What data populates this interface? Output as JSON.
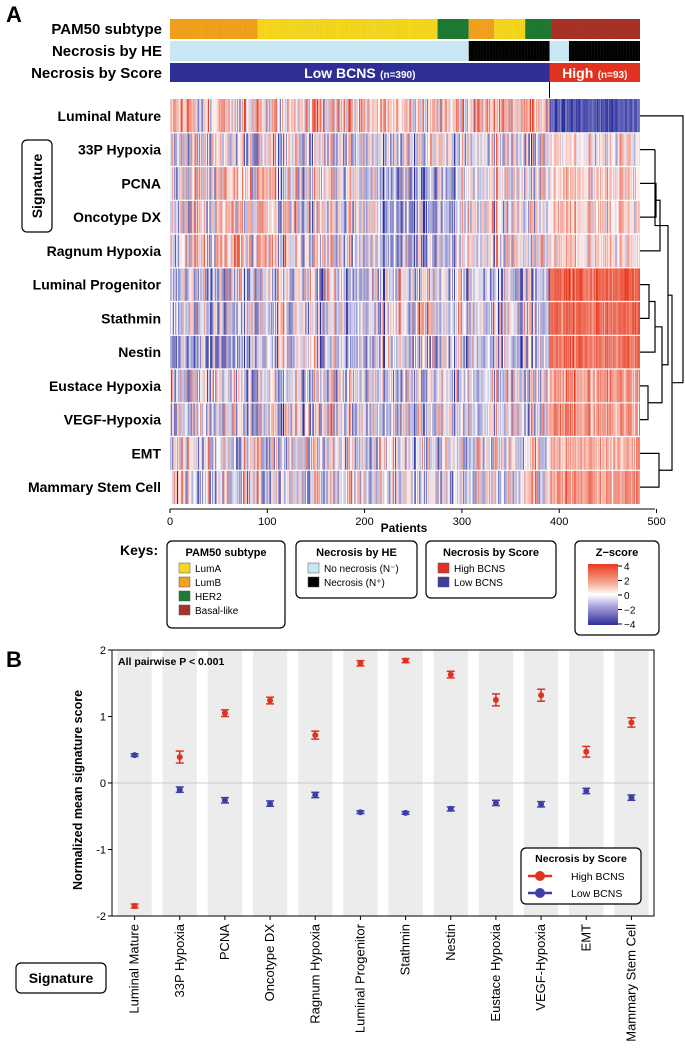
{
  "panel_labels": [
    "A",
    "B"
  ],
  "heatmap_panel": {
    "annotation_tracks": [
      {
        "label": "PAM50 subtype"
      },
      {
        "label": "Necrosis by HE"
      },
      {
        "label": "Necrosis by Score"
      }
    ],
    "score_bar": {
      "low_label": "Low BCNS",
      "low_n": "(n=390)",
      "high_label": "High",
      "high_n": "(n=93)"
    },
    "row_axis_box": "Signature",
    "rows": [
      "Luminal Mature",
      "33P Hypoxia",
      "PCNA",
      "Oncotype DX",
      "Ragnum Hypoxia",
      "Luminal Progenitor",
      "Stathmin",
      "Nestin",
      "Eustace Hypoxia",
      "VEGF-Hypoxia",
      "EMT",
      "Mammary Stem Cell"
    ],
    "x_axis": {
      "title": "Patients",
      "ticks": [
        0,
        100,
        200,
        300,
        400,
        500
      ],
      "lim": [
        0,
        483
      ]
    },
    "patients": {
      "total": 483,
      "low_bcns": 390,
      "high_bcns": 93
    },
    "keys": {
      "title": "Keys:",
      "groups": [
        {
          "title": "PAM50 subtype",
          "items": [
            {
              "label": "LumA",
              "color": "#f6d81f"
            },
            {
              "label": "LumB",
              "color": "#f4a21b"
            },
            {
              "label": "HER2",
              "color": "#1f7a33"
            },
            {
              "label": "Basal-like",
              "color": "#a83228"
            }
          ]
        },
        {
          "title": "Necrosis by HE",
          "items": [
            {
              "label": "No necrosis (N⁻)",
              "color": "#c9e6f3"
            },
            {
              "label": "Necrosis (N⁺)",
              "color": "#000000"
            }
          ]
        },
        {
          "title": "Necrosis by Score",
          "items": [
            {
              "label": "High BCNS",
              "color": "#e0321f"
            },
            {
              "label": "Low BCNS",
              "color": "#3e3e9e"
            }
          ]
        }
      ],
      "zscore": {
        "title": "Z−score",
        "ticks": [
          "4",
          "2",
          "0",
          "−2",
          "−4"
        ]
      }
    },
    "colors": {
      "low": "#2e2f96",
      "high": "#e8391e",
      "mid": "#ffffff"
    }
  },
  "chart_data": {
    "type": "scatter",
    "subtype": "mean with error bars",
    "categories": [
      "Luminal Mature",
      "33P Hypoxia",
      "PCNA",
      "Oncotype DX",
      "Ragnum Hypoxia",
      "Luminal Progenitor",
      "Stathmin",
      "Nestin",
      "Eustace Hypoxia",
      "VEGF-Hypoxia",
      "EMT",
      "Mammary Stem Cell"
    ],
    "series": [
      {
        "name": "High BCNS",
        "color": "#e0321f",
        "values": [
          -1.85,
          0.39,
          1.05,
          1.24,
          0.72,
          1.8,
          1.84,
          1.63,
          1.25,
          1.32,
          0.47,
          0.91
        ],
        "errors": [
          0.03,
          0.09,
          0.05,
          0.05,
          0.06,
          0.04,
          0.03,
          0.05,
          0.09,
          0.09,
          0.08,
          0.07
        ]
      },
      {
        "name": "Low BCNS",
        "color": "#3e3ea8",
        "values": [
          0.42,
          -0.1,
          -0.26,
          -0.31,
          -0.18,
          -0.44,
          -0.45,
          -0.39,
          -0.3,
          -0.32,
          -0.12,
          -0.22
        ],
        "errors": [
          0.02,
          0.04,
          0.04,
          0.04,
          0.04,
          0.02,
          0.02,
          0.03,
          0.04,
          0.04,
          0.04,
          0.04
        ]
      }
    ],
    "title": "",
    "annotation": "All pairwise P < 0.001",
    "xlabel": "Signature",
    "ylabel": "Normalized mean signature score",
    "ylim": [
      -2,
      2
    ],
    "yticks": [
      -2,
      -1,
      0,
      1,
      2
    ],
    "legend": {
      "title": "Necrosis by Score",
      "placement": "bottom-right"
    }
  }
}
